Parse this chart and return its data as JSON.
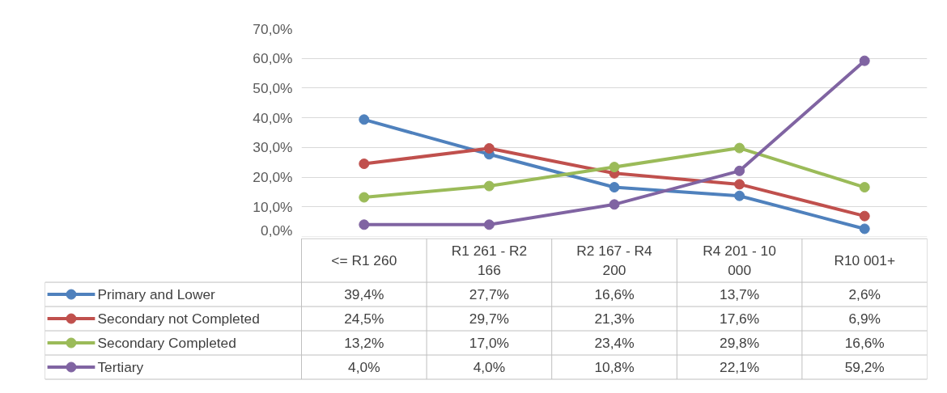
{
  "chart_data": {
    "type": "line",
    "categories": [
      "<= R1 260",
      "R1 261 - R2 166",
      "R2 167 - R4 200",
      "R4 201 - 10 000",
      "R10 001+"
    ],
    "series": [
      {
        "name": "Primary and Lower",
        "color": "#4f81bd",
        "values": [
          39.4,
          27.7,
          16.6,
          13.7,
          2.6
        ],
        "value_labels": [
          "39,4%",
          "27,7%",
          "16,6%",
          "13,7%",
          "2,6%"
        ]
      },
      {
        "name": "Secondary not Completed",
        "color": "#c0504d",
        "values": [
          24.5,
          29.7,
          21.3,
          17.6,
          6.9
        ],
        "value_labels": [
          "24,5%",
          "29,7%",
          "21,3%",
          "17,6%",
          "6,9%"
        ]
      },
      {
        "name": "Secondary Completed",
        "color": "#9bbb59",
        "values": [
          13.2,
          17.0,
          23.4,
          29.8,
          16.6
        ],
        "value_labels": [
          "13,2%",
          "17,0%",
          "23,4%",
          "29,8%",
          "16,6%"
        ]
      },
      {
        "name": "Tertiary",
        "color": "#8064a2",
        "values": [
          4.0,
          4.0,
          10.8,
          22.1,
          59.2
        ],
        "value_labels": [
          "4,0%",
          "4,0%",
          "10,8%",
          "22,1%",
          "59,2%"
        ]
      }
    ],
    "ylim": [
      0,
      70
    ],
    "yticks": [
      {
        "value": 0,
        "label": "0,0%"
      },
      {
        "value": 10,
        "label": "10,0%"
      },
      {
        "value": 20,
        "label": "20,0%"
      },
      {
        "value": 30,
        "label": "30,0%"
      },
      {
        "value": 40,
        "label": "40,0%"
      },
      {
        "value": 50,
        "label": "50,0%"
      },
      {
        "value": 60,
        "label": "60,0%"
      },
      {
        "value": 70,
        "label": "70,0%"
      }
    ],
    "grid": "y",
    "marker": "circle",
    "line_style": "solid",
    "legend": "bottom"
  }
}
